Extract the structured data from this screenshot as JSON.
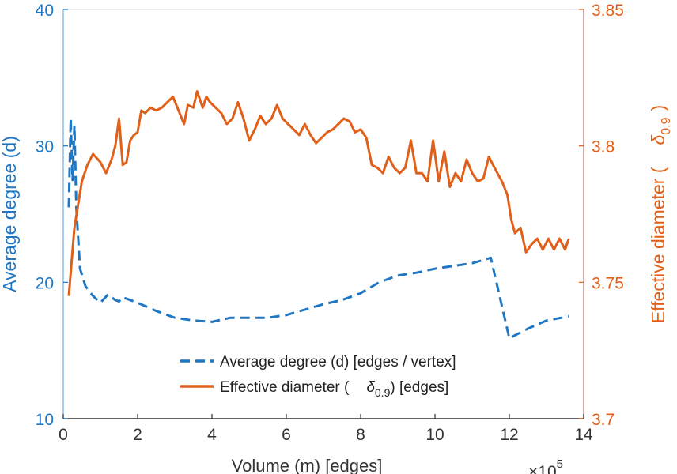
{
  "chart_data": {
    "type": "line",
    "xlabel": "Volume (m) [edges]",
    "x_exponent_label": "×10",
    "x_exponent_power": "5",
    "ylabel_left": "Average degree (d)",
    "ylabel_right_prefix": "Effective diameter (",
    "ylabel_right_symbol": "δ",
    "ylabel_right_subscript": "0.9",
    "ylabel_right_suffix": ")",
    "xlim": [
      0,
      14
    ],
    "ylim_left": [
      10,
      40
    ],
    "ylim_right": [
      3.7,
      3.85
    ],
    "x_ticks": [
      "0",
      "2",
      "4",
      "6",
      "8",
      "10",
      "12",
      "14"
    ],
    "y_left_ticks": [
      "10",
      "20",
      "30",
      "40"
    ],
    "y_right_ticks": [
      "3.7",
      "3.75",
      "3.8",
      "3.85"
    ],
    "legend": {
      "position": "lower-center",
      "entries": [
        {
          "text": "Average degree (d) [edges / vertex]"
        },
        {
          "text_prefix": "Effective diameter (",
          "symbol": "δ",
          "subscript": "0.9",
          "text_suffix": ") [edges]"
        }
      ]
    },
    "series": [
      {
        "name": "Average degree (d) [edges / vertex]",
        "axis": "left",
        "style": "dashed",
        "color": "#1f77c4",
        "x": [
          0.15,
          0.2,
          0.25,
          0.3,
          0.35,
          0.45,
          0.6,
          0.8,
          1.0,
          1.2,
          1.4,
          1.5,
          1.6,
          1.8,
          2.0,
          2.5,
          3.0,
          3.5,
          4.0,
          4.5,
          5.0,
          5.5,
          6.0,
          6.5,
          7.0,
          7.5,
          8.0,
          8.5,
          9.0,
          9.5,
          10.0,
          10.5,
          11.0,
          11.5,
          12.0,
          12.5,
          13.0,
          13.6
        ],
        "values": [
          25.5,
          32.0,
          27.5,
          31.5,
          25.5,
          21.0,
          19.7,
          19.0,
          18.5,
          19.1,
          18.7,
          18.6,
          18.9,
          18.7,
          18.5,
          17.9,
          17.4,
          17.2,
          17.1,
          17.4,
          17.4,
          17.4,
          17.6,
          18.0,
          18.4,
          18.7,
          19.2,
          20.0,
          20.5,
          20.7,
          21.0,
          21.2,
          21.4,
          21.8,
          15.9,
          16.6,
          17.2,
          17.5
        ]
      },
      {
        "name": "Effective diameter (δ0.9) [edges]",
        "axis": "right",
        "style": "solid",
        "color": "#e0601a",
        "x": [
          0.15,
          0.3,
          0.5,
          0.65,
          0.8,
          1.0,
          1.15,
          1.3,
          1.4,
          1.5,
          1.6,
          1.7,
          1.8,
          1.9,
          2.0,
          2.1,
          2.2,
          2.35,
          2.5,
          2.65,
          2.8,
          2.95,
          3.1,
          3.25,
          3.35,
          3.5,
          3.6,
          3.75,
          3.85,
          3.95,
          4.1,
          4.25,
          4.4,
          4.55,
          4.7,
          4.85,
          5.0,
          5.15,
          5.3,
          5.45,
          5.6,
          5.75,
          5.9,
          6.05,
          6.2,
          6.35,
          6.5,
          6.65,
          6.8,
          6.95,
          7.1,
          7.25,
          7.4,
          7.55,
          7.7,
          7.85,
          8.0,
          8.15,
          8.3,
          8.45,
          8.6,
          8.75,
          8.9,
          9.05,
          9.2,
          9.35,
          9.5,
          9.65,
          9.8,
          9.95,
          10.1,
          10.25,
          10.4,
          10.55,
          10.7,
          10.85,
          11.0,
          11.15,
          11.3,
          11.45,
          11.6,
          11.8,
          11.95,
          12.05,
          12.15,
          12.3,
          12.45,
          12.6,
          12.75,
          12.9,
          13.05,
          13.2,
          13.35,
          13.5,
          13.6
        ],
        "values": [
          3.745,
          3.77,
          3.787,
          3.793,
          3.797,
          3.794,
          3.79,
          3.795,
          3.8,
          3.81,
          3.793,
          3.794,
          3.802,
          3.804,
          3.805,
          3.813,
          3.812,
          3.814,
          3.813,
          3.814,
          3.816,
          3.818,
          3.813,
          3.808,
          3.815,
          3.814,
          3.82,
          3.814,
          3.818,
          3.816,
          3.814,
          3.812,
          3.808,
          3.81,
          3.816,
          3.81,
          3.802,
          3.806,
          3.811,
          3.808,
          3.81,
          3.815,
          3.81,
          3.808,
          3.806,
          3.804,
          3.808,
          3.804,
          3.801,
          3.803,
          3.805,
          3.806,
          3.808,
          3.81,
          3.809,
          3.805,
          3.806,
          3.803,
          3.793,
          3.792,
          3.79,
          3.796,
          3.792,
          3.79,
          3.792,
          3.802,
          3.79,
          3.79,
          3.787,
          3.802,
          3.787,
          3.798,
          3.785,
          3.79,
          3.787,
          3.795,
          3.79,
          3.787,
          3.788,
          3.796,
          3.792,
          3.787,
          3.782,
          3.773,
          3.768,
          3.77,
          3.761,
          3.764,
          3.766,
          3.762,
          3.766,
          3.762,
          3.766,
          3.762,
          3.766
        ]
      }
    ]
  }
}
